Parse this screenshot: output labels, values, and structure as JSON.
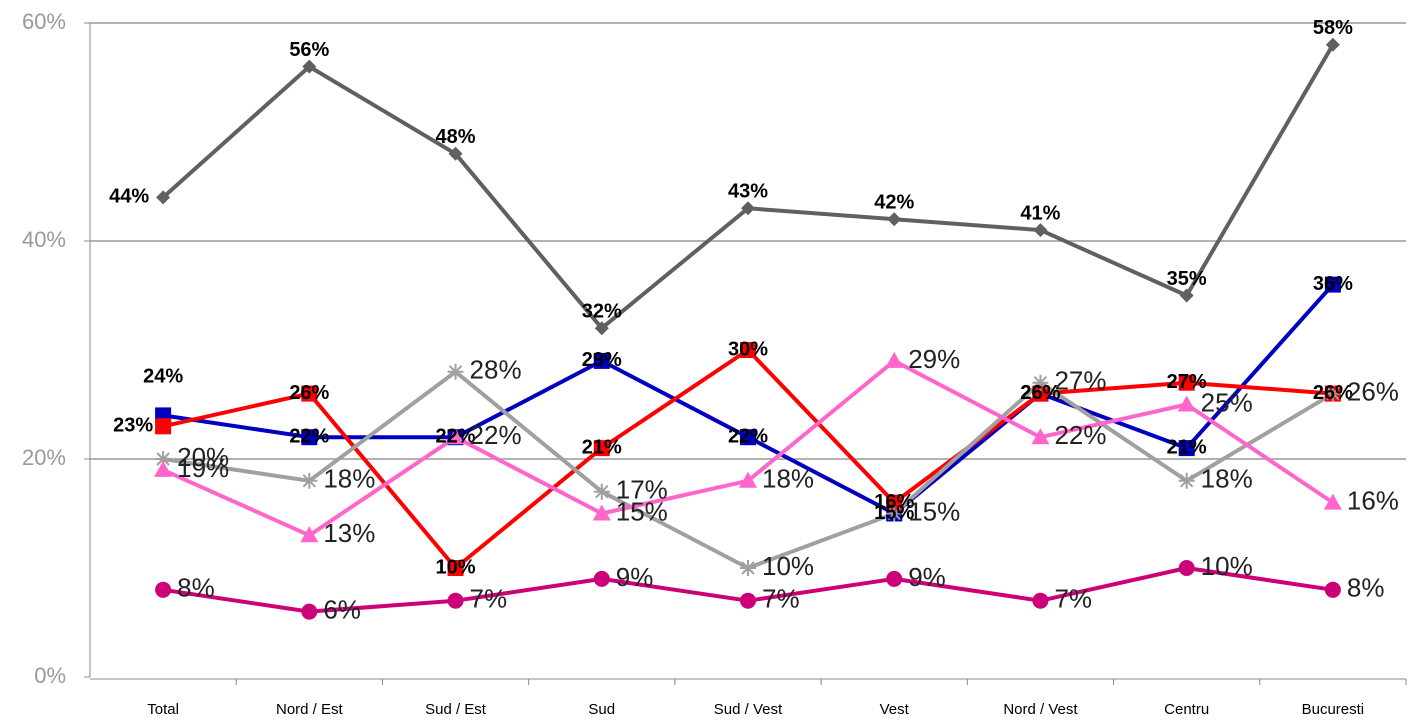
{
  "chart_data": {
    "type": "line",
    "categories": [
      "Total",
      "Nord / Est",
      "Sud / Est",
      "Sud",
      "Sud / Vest",
      "Vest",
      "Nord / Vest",
      "Centru",
      "Bucuresti"
    ],
    "ylim": [
      0,
      60
    ],
    "yticks": [
      {
        "value": 0,
        "label": "0%"
      },
      {
        "value": 20,
        "label": "20%"
      },
      {
        "value": 40,
        "label": "40%"
      },
      {
        "value": 60,
        "label": "60%"
      }
    ],
    "grid": true,
    "series": [
      {
        "color": "#606060",
        "marker": "diamond",
        "values": [
          44,
          56,
          48,
          32,
          43,
          42,
          41,
          35,
          58
        ],
        "value_labels": [
          "44%",
          "56%",
          "48%",
          "32%",
          "43%",
          "42%",
          "41%",
          "35%",
          "58%"
        ]
      },
      {
        "color": "#0000c0",
        "marker": "square",
        "values": [
          24,
          22,
          22,
          29,
          22,
          15,
          26,
          21,
          36
        ],
        "value_labels": [
          "24%",
          "22%",
          "22%",
          "29%",
          "22%",
          "15%",
          "26%",
          "21%",
          "36%"
        ]
      },
      {
        "color": "#ff0000",
        "marker": "square",
        "values": [
          23,
          26,
          10,
          21,
          30,
          16,
          26,
          27,
          26
        ],
        "value_labels": [
          "23%",
          "26%",
          "10%",
          "21%",
          "30%",
          "16%",
          "26%",
          "27%",
          "26%"
        ]
      },
      {
        "color": "#a0a0a0",
        "marker": "asterisk",
        "values": [
          20,
          18,
          28,
          17,
          10,
          15,
          27,
          18,
          26
        ],
        "value_labels": [
          "20%",
          "18%",
          "28%",
          "17%",
          "10%",
          "15%",
          "27%",
          "18%",
          "26%"
        ]
      },
      {
        "color": "#ff66cc",
        "marker": "triangle",
        "values": [
          19,
          13,
          22,
          15,
          18,
          29,
          22,
          25,
          16
        ],
        "value_labels": [
          "19%",
          "13%",
          "22%",
          "15%",
          "18%",
          "29%",
          "22%",
          "25%",
          "16%"
        ]
      },
      {
        "color": "#cc0077",
        "marker": "circle",
        "values": [
          8,
          6,
          7,
          9,
          7,
          9,
          7,
          10,
          8
        ],
        "value_labels": [
          "8%",
          "6%",
          "7%",
          "9%",
          "7%",
          "9%",
          "7%",
          "10%",
          "8%"
        ]
      }
    ]
  }
}
